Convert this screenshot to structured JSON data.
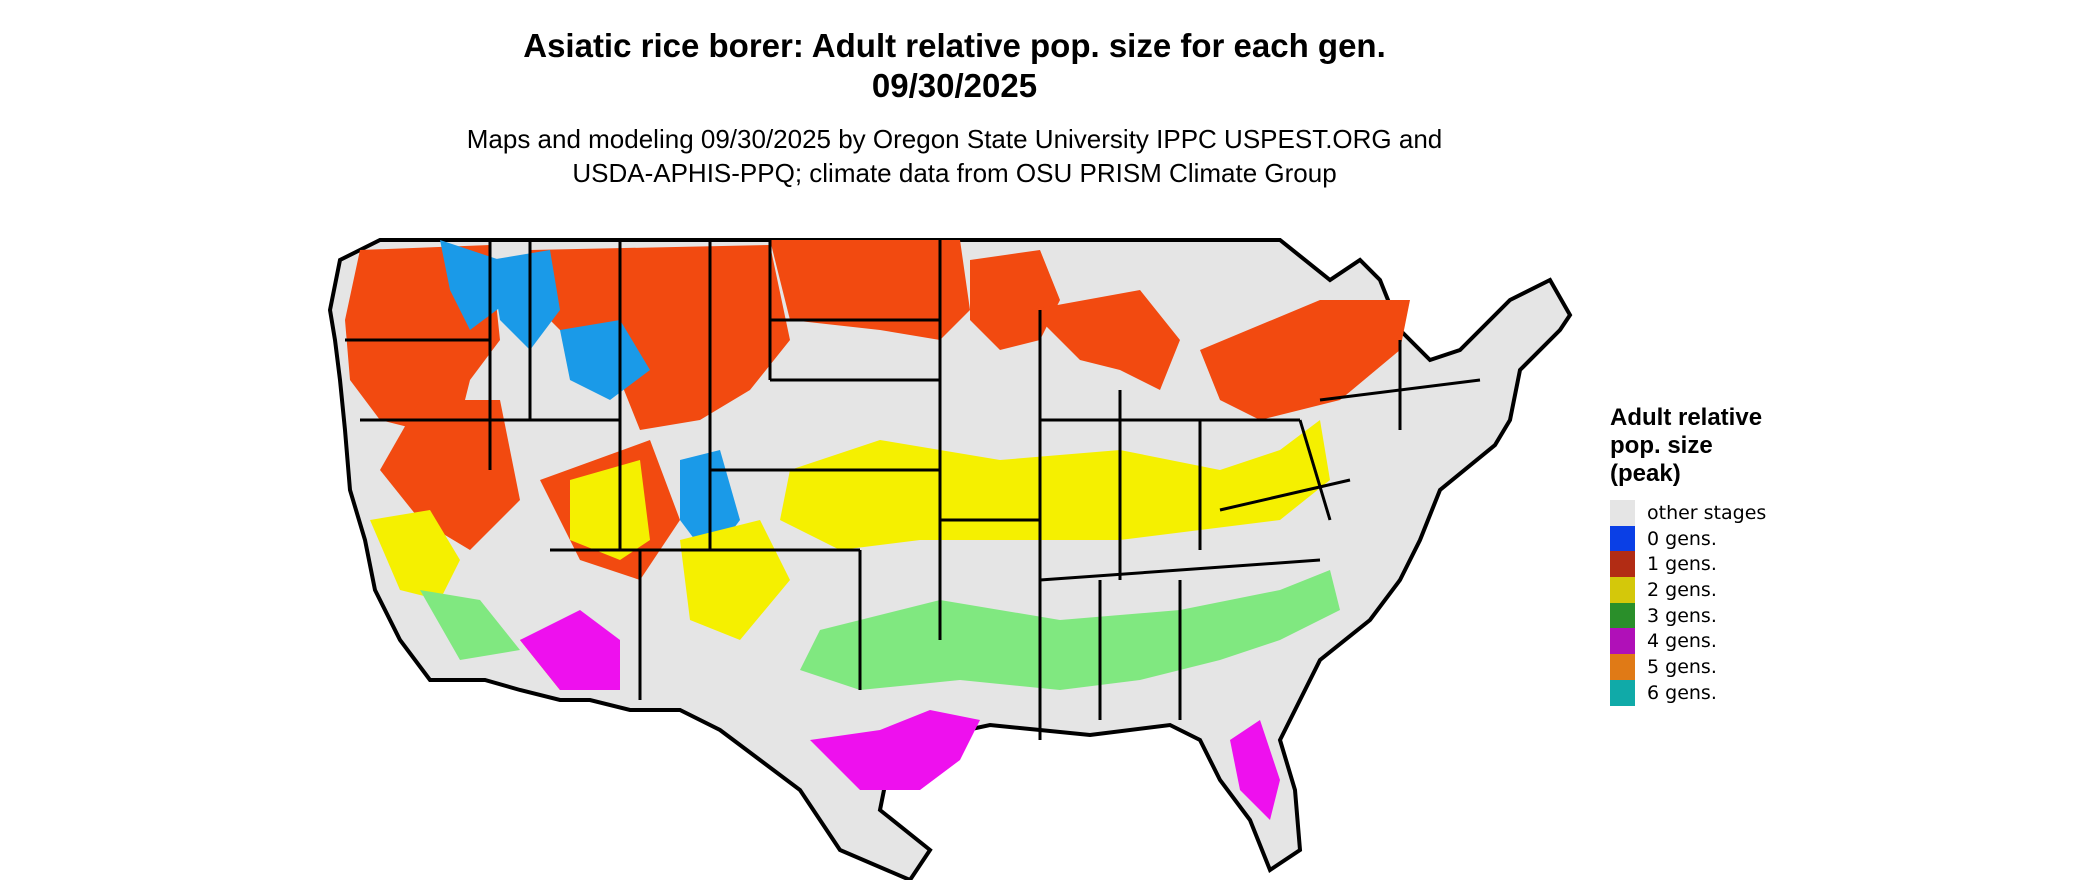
{
  "title": {
    "line1": "Asiatic rice borer: Adult relative pop. size for each gen.",
    "line2": "09/30/2025"
  },
  "subtitle": {
    "line1": "Maps and modeling 09/30/2025 by Oregon State University IPPC USPEST.ORG and",
    "line2": "USDA-APHIS-PPQ; climate data from OSU PRISM Climate Group"
  },
  "legend": {
    "title_lines": [
      "Adult relative",
      "pop. size",
      "(peak)"
    ],
    "items": [
      {
        "label": "other stages",
        "color": "#e5e5e5"
      },
      {
        "label": "0 gens.",
        "color": "#0a3fe6"
      },
      {
        "label": "1 gens.",
        "color": "#b22c14"
      },
      {
        "label": "2 gens.",
        "color": "#d4c80a"
      },
      {
        "label": "3 gens.",
        "color": "#2a8f2a"
      },
      {
        "label": "4 gens.",
        "color": "#b010b8"
      },
      {
        "label": "5 gens.",
        "color": "#e07a16"
      },
      {
        "label": "6 gens.",
        "color": "#10aaa8"
      }
    ]
  },
  "map_colors": {
    "background": "#e5e5e5",
    "one_gen": "#f24a10",
    "zero_gen": "#1a9ae8",
    "two_gen": "#f5f000",
    "three_gen": "#80e880",
    "four_gen": "#ee10ee",
    "borders": "#000000"
  }
}
